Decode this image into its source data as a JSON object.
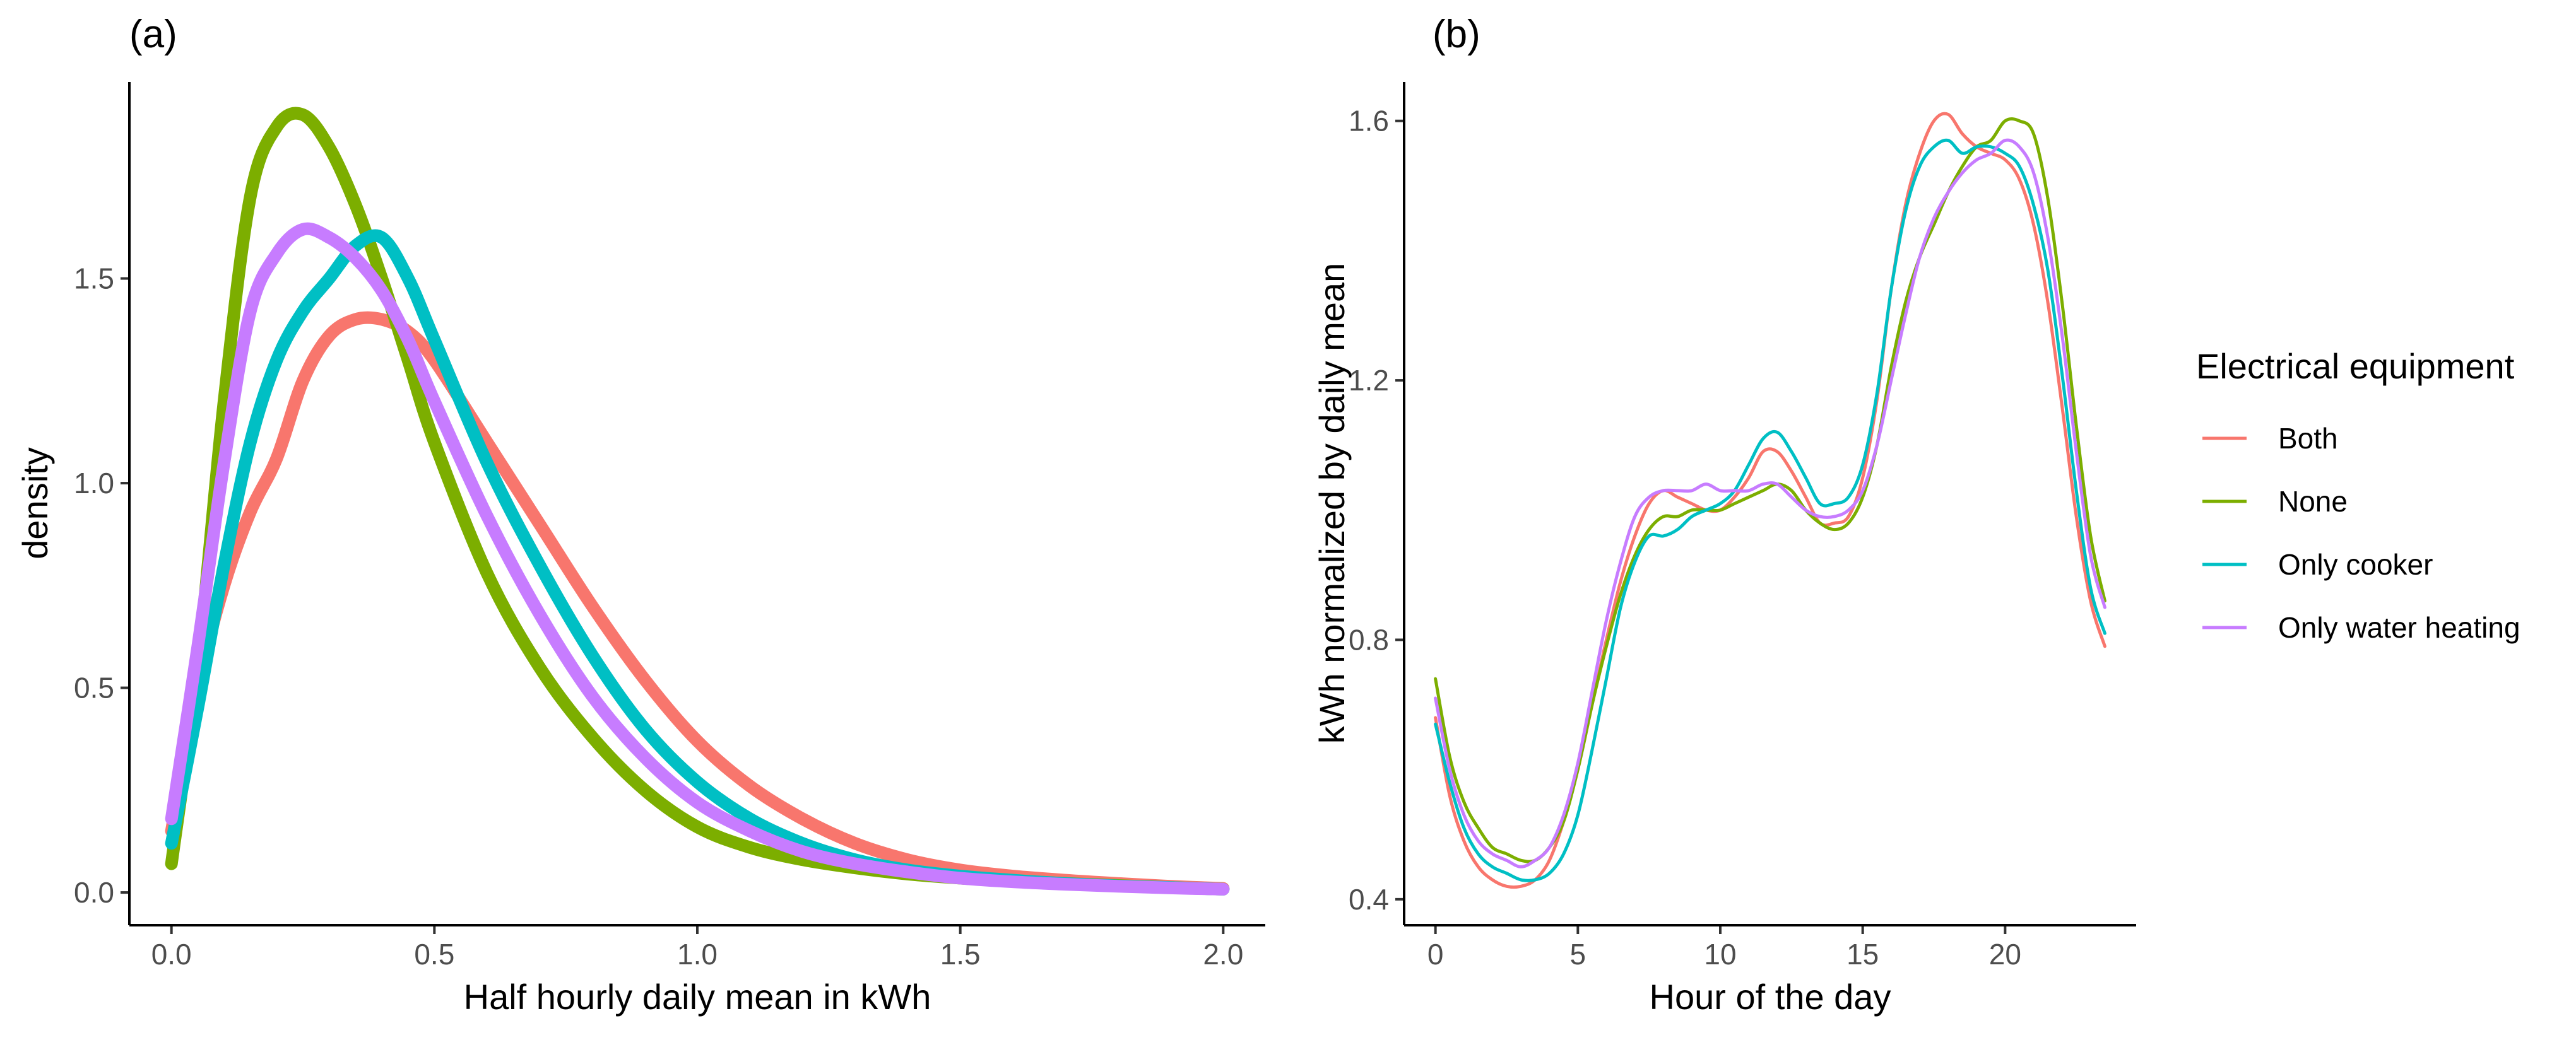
{
  "colors": {
    "Both": "#F8766D",
    "None": "#7CAE00",
    "Only cooker": "#00BFC4",
    "Only water heating": "#C77CFF"
  },
  "chart_data": [
    {
      "type": "line",
      "panel_label": "(a)",
      "title": "",
      "xlabel": "Half hourly daily mean in kWh",
      "ylabel": "density",
      "xlim": [
        -0.08,
        2.08
      ],
      "ylim": [
        -0.08,
        1.98
      ],
      "xticks": [
        0.0,
        0.5,
        1.0,
        1.5,
        2.0
      ],
      "xtick_labels": [
        "0.0",
        "0.5",
        "1.0",
        "1.5",
        "2.0"
      ],
      "yticks": [
        0.0,
        0.5,
        1.0,
        1.5
      ],
      "ytick_labels": [
        "0.0",
        "0.5",
        "1.0",
        "1.5"
      ],
      "series": [
        {
          "name": "Both",
          "x": [
            0,
            0.05,
            0.1,
            0.15,
            0.2,
            0.25,
            0.3,
            0.35,
            0.4,
            0.45,
            0.5,
            0.6,
            0.7,
            0.8,
            0.9,
            1.0,
            1.1,
            1.2,
            1.3,
            1.4,
            1.5,
            1.6,
            1.7,
            1.8,
            1.9,
            2.0
          ],
          "y": [
            0.15,
            0.5,
            0.75,
            0.93,
            1.06,
            1.25,
            1.36,
            1.4,
            1.4,
            1.37,
            1.3,
            1.1,
            0.9,
            0.7,
            0.52,
            0.37,
            0.26,
            0.18,
            0.12,
            0.08,
            0.055,
            0.04,
            0.03,
            0.022,
            0.015,
            0.01
          ]
        },
        {
          "name": "None",
          "x": [
            0,
            0.05,
            0.1,
            0.15,
            0.2,
            0.25,
            0.3,
            0.35,
            0.4,
            0.45,
            0.5,
            0.6,
            0.7,
            0.8,
            0.9,
            1.0,
            1.1,
            1.2,
            1.3,
            1.4,
            1.5,
            1.6,
            1.7,
            1.8,
            1.9,
            2.0
          ],
          "y": [
            0.07,
            0.55,
            1.2,
            1.7,
            1.87,
            1.9,
            1.82,
            1.68,
            1.5,
            1.3,
            1.1,
            0.78,
            0.55,
            0.38,
            0.25,
            0.16,
            0.11,
            0.08,
            0.06,
            0.045,
            0.035,
            0.028,
            0.022,
            0.017,
            0.012,
            0.008
          ]
        },
        {
          "name": "Only cooker",
          "x": [
            0,
            0.05,
            0.1,
            0.15,
            0.2,
            0.25,
            0.3,
            0.35,
            0.4,
            0.45,
            0.5,
            0.6,
            0.7,
            0.8,
            0.9,
            1.0,
            1.1,
            1.2,
            1.3,
            1.4,
            1.5,
            1.6,
            1.7,
            1.8,
            1.9,
            2.0
          ],
          "y": [
            0.12,
            0.45,
            0.8,
            1.1,
            1.3,
            1.42,
            1.5,
            1.58,
            1.6,
            1.5,
            1.35,
            1.05,
            0.8,
            0.58,
            0.4,
            0.27,
            0.18,
            0.12,
            0.08,
            0.055,
            0.04,
            0.03,
            0.022,
            0.016,
            0.012,
            0.008
          ]
        },
        {
          "name": "Only water heating",
          "x": [
            0,
            0.05,
            0.1,
            0.15,
            0.2,
            0.25,
            0.3,
            0.35,
            0.4,
            0.45,
            0.5,
            0.6,
            0.7,
            0.8,
            0.9,
            1.0,
            1.1,
            1.2,
            1.3,
            1.4,
            1.5,
            1.6,
            1.7,
            1.8,
            1.9,
            2.0
          ],
          "y": [
            0.18,
            0.6,
            1.05,
            1.42,
            1.56,
            1.62,
            1.6,
            1.55,
            1.47,
            1.35,
            1.2,
            0.92,
            0.68,
            0.48,
            0.33,
            0.22,
            0.15,
            0.1,
            0.07,
            0.05,
            0.035,
            0.026,
            0.02,
            0.015,
            0.011,
            0.008
          ]
        }
      ]
    },
    {
      "type": "line",
      "panel_label": "(b)",
      "title": "",
      "xlabel": "Hour of the day",
      "ylabel": "kWh normalized by daily mean",
      "xlim": [
        -1.1,
        24.6
      ],
      "ylim": [
        0.36,
        1.66
      ],
      "xticks": [
        0,
        5,
        10,
        15,
        20
      ],
      "xtick_labels": [
        "0",
        "5",
        "10",
        "15",
        "20"
      ],
      "yticks": [
        0.4,
        0.8,
        1.2,
        1.6
      ],
      "ytick_labels": [
        "0.4",
        "0.8",
        "1.2",
        "1.6"
      ],
      "series": [
        {
          "name": "Both",
          "x": [
            0,
            0.5,
            1,
            1.5,
            2,
            2.5,
            3,
            3.5,
            4,
            4.5,
            5,
            5.5,
            6,
            6.5,
            7,
            7.5,
            8,
            8.5,
            9,
            9.5,
            10,
            10.5,
            11,
            11.5,
            12,
            12.5,
            13,
            13.5,
            14,
            14.5,
            15,
            15.5,
            16,
            16.5,
            17,
            17.5,
            18,
            18.5,
            19,
            19.5,
            20,
            20.5,
            21,
            21.5,
            22,
            22.5,
            23,
            23.5
          ],
          "y": [
            0.68,
            0.56,
            0.49,
            0.45,
            0.43,
            0.42,
            0.42,
            0.43,
            0.46,
            0.52,
            0.6,
            0.7,
            0.8,
            0.89,
            0.96,
            1.01,
            1.03,
            1.02,
            1.01,
            1.0,
            1.0,
            1.02,
            1.05,
            1.09,
            1.09,
            1.06,
            1.02,
            0.98,
            0.98,
            0.99,
            1.05,
            1.17,
            1.34,
            1.47,
            1.55,
            1.6,
            1.61,
            1.58,
            1.56,
            1.55,
            1.54,
            1.51,
            1.44,
            1.32,
            1.16,
            0.99,
            0.86,
            0.79
          ]
        },
        {
          "name": "None",
          "x": [
            0,
            0.5,
            1,
            1.5,
            2,
            2.5,
            3,
            3.5,
            4,
            4.5,
            5,
            5.5,
            6,
            6.5,
            7,
            7.5,
            8,
            8.5,
            9,
            9.5,
            10,
            10.5,
            11,
            11.5,
            12,
            12.5,
            13,
            13.5,
            14,
            14.5,
            15,
            15.5,
            16,
            16.5,
            17,
            17.5,
            18,
            18.5,
            19,
            19.5,
            20,
            20.5,
            21,
            21.5,
            22,
            22.5,
            23,
            23.5
          ],
          "y": [
            0.74,
            0.62,
            0.55,
            0.51,
            0.48,
            0.47,
            0.46,
            0.46,
            0.48,
            0.52,
            0.6,
            0.7,
            0.79,
            0.87,
            0.93,
            0.97,
            0.99,
            0.99,
            1.0,
            1.0,
            1.0,
            1.01,
            1.02,
            1.03,
            1.04,
            1.03,
            1.0,
            0.98,
            0.97,
            0.98,
            1.02,
            1.1,
            1.22,
            1.32,
            1.39,
            1.44,
            1.49,
            1.53,
            1.56,
            1.57,
            1.6,
            1.6,
            1.58,
            1.48,
            1.32,
            1.13,
            0.96,
            0.86
          ]
        },
        {
          "name": "Only cooker",
          "x": [
            0,
            0.5,
            1,
            1.5,
            2,
            2.5,
            3,
            3.5,
            4,
            4.5,
            5,
            5.5,
            6,
            6.5,
            7,
            7.5,
            8,
            8.5,
            9,
            9.5,
            10,
            10.5,
            11,
            11.5,
            12,
            12.5,
            13,
            13.5,
            14,
            14.5,
            15,
            15.5,
            16,
            16.5,
            17,
            17.5,
            18,
            18.5,
            19,
            19.5,
            20,
            20.5,
            21,
            21.5,
            22,
            22.5,
            23,
            23.5
          ],
          "y": [
            0.67,
            0.58,
            0.51,
            0.47,
            0.45,
            0.44,
            0.43,
            0.43,
            0.44,
            0.47,
            0.53,
            0.63,
            0.74,
            0.85,
            0.92,
            0.96,
            0.96,
            0.97,
            0.99,
            1.0,
            1.01,
            1.03,
            1.07,
            1.11,
            1.12,
            1.09,
            1.05,
            1.01,
            1.01,
            1.02,
            1.07,
            1.18,
            1.34,
            1.46,
            1.53,
            1.56,
            1.57,
            1.55,
            1.56,
            1.56,
            1.55,
            1.53,
            1.47,
            1.37,
            1.21,
            1.03,
            0.88,
            0.81
          ]
        },
        {
          "name": "Only water heating",
          "x": [
            0,
            0.5,
            1,
            1.5,
            2,
            2.5,
            3,
            3.5,
            4,
            4.5,
            5,
            5.5,
            6,
            6.5,
            7,
            7.5,
            8,
            8.5,
            9,
            9.5,
            10,
            10.5,
            11,
            11.5,
            12,
            12.5,
            13,
            13.5,
            14,
            14.5,
            15,
            15.5,
            16,
            16.5,
            17,
            17.5,
            18,
            18.5,
            19,
            19.5,
            20,
            20.5,
            21,
            21.5,
            22,
            22.5,
            23,
            23.5
          ],
          "y": [
            0.71,
            0.6,
            0.53,
            0.49,
            0.47,
            0.46,
            0.45,
            0.46,
            0.48,
            0.53,
            0.61,
            0.72,
            0.83,
            0.92,
            0.99,
            1.02,
            1.03,
            1.03,
            1.03,
            1.04,
            1.03,
            1.03,
            1.03,
            1.04,
            1.04,
            1.02,
            1.0,
            0.99,
            0.99,
            1.0,
            1.03,
            1.1,
            1.2,
            1.3,
            1.39,
            1.45,
            1.49,
            1.52,
            1.54,
            1.55,
            1.57,
            1.56,
            1.52,
            1.42,
            1.27,
            1.09,
            0.93,
            0.85
          ]
        }
      ]
    }
  ],
  "legend": {
    "title": "Electrical equipment",
    "items": [
      "Both",
      "None",
      "Only cooker",
      "Only water heating"
    ]
  }
}
